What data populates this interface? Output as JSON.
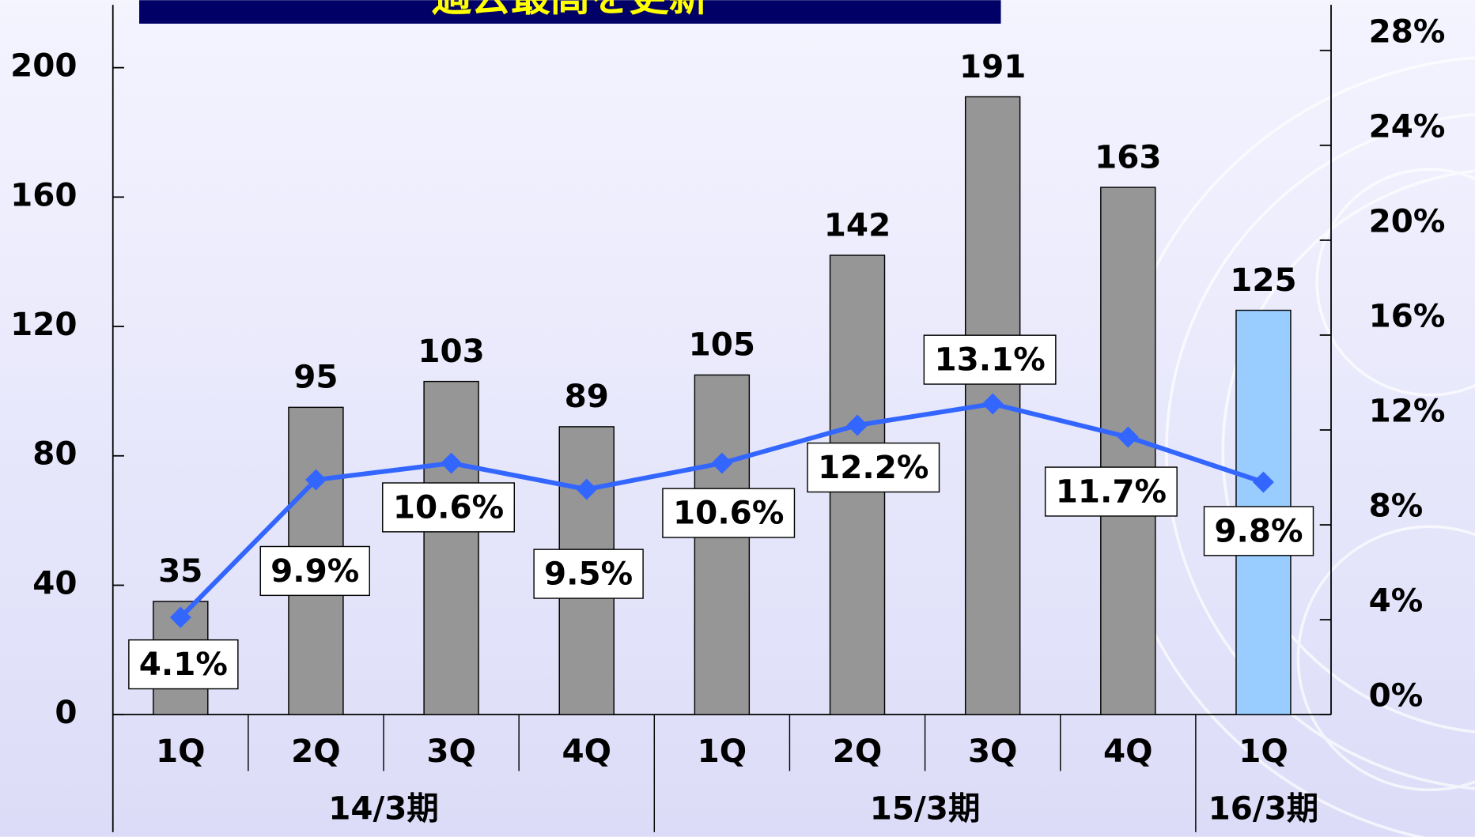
{
  "chart_data": {
    "type": "bar",
    "title": "過去最高を更新",
    "categories": [
      "1Q",
      "2Q",
      "3Q",
      "4Q",
      "1Q",
      "2Q",
      "3Q",
      "4Q",
      "1Q"
    ],
    "groups": [
      "14/3期",
      "15/3期",
      "16/3期"
    ],
    "series": [
      {
        "type": "bar",
        "values": [
          35,
          95,
          103,
          89,
          105,
          142,
          191,
          163,
          125
        ],
        "colors": [
          "#969696",
          "#969696",
          "#969696",
          "#969696",
          "#969696",
          "#969696",
          "#969696",
          "#969696",
          "#99ccff"
        ]
      },
      {
        "type": "line",
        "axis": "y2",
        "color": "#3366ff",
        "values": [
          4.1,
          9.9,
          10.6,
          9.5,
          10.6,
          12.2,
          13.1,
          11.7,
          9.8
        ],
        "value_labels": [
          "4.1%",
          "9.9%",
          "10.6%",
          "9.5%",
          "10.6%",
          "12.2%",
          "13.1%",
          "11.7%",
          "9.8%"
        ]
      }
    ],
    "ylim": [
      0,
      220
    ],
    "yticks": [
      0,
      40,
      80,
      120,
      160,
      200
    ],
    "y2lim": [
      0,
      30
    ],
    "y2ticks": [
      {
        "value": 0,
        "label": "0%"
      },
      {
        "value": 4,
        "label": "4%"
      },
      {
        "value": 8,
        "label": "8%"
      },
      {
        "value": 12,
        "label": "12%"
      },
      {
        "value": 16,
        "label": "16%"
      },
      {
        "value": 20,
        "label": "20%"
      },
      {
        "value": 24,
        "label": "24%"
      },
      {
        "value": 28,
        "label": "28%"
      }
    ]
  }
}
